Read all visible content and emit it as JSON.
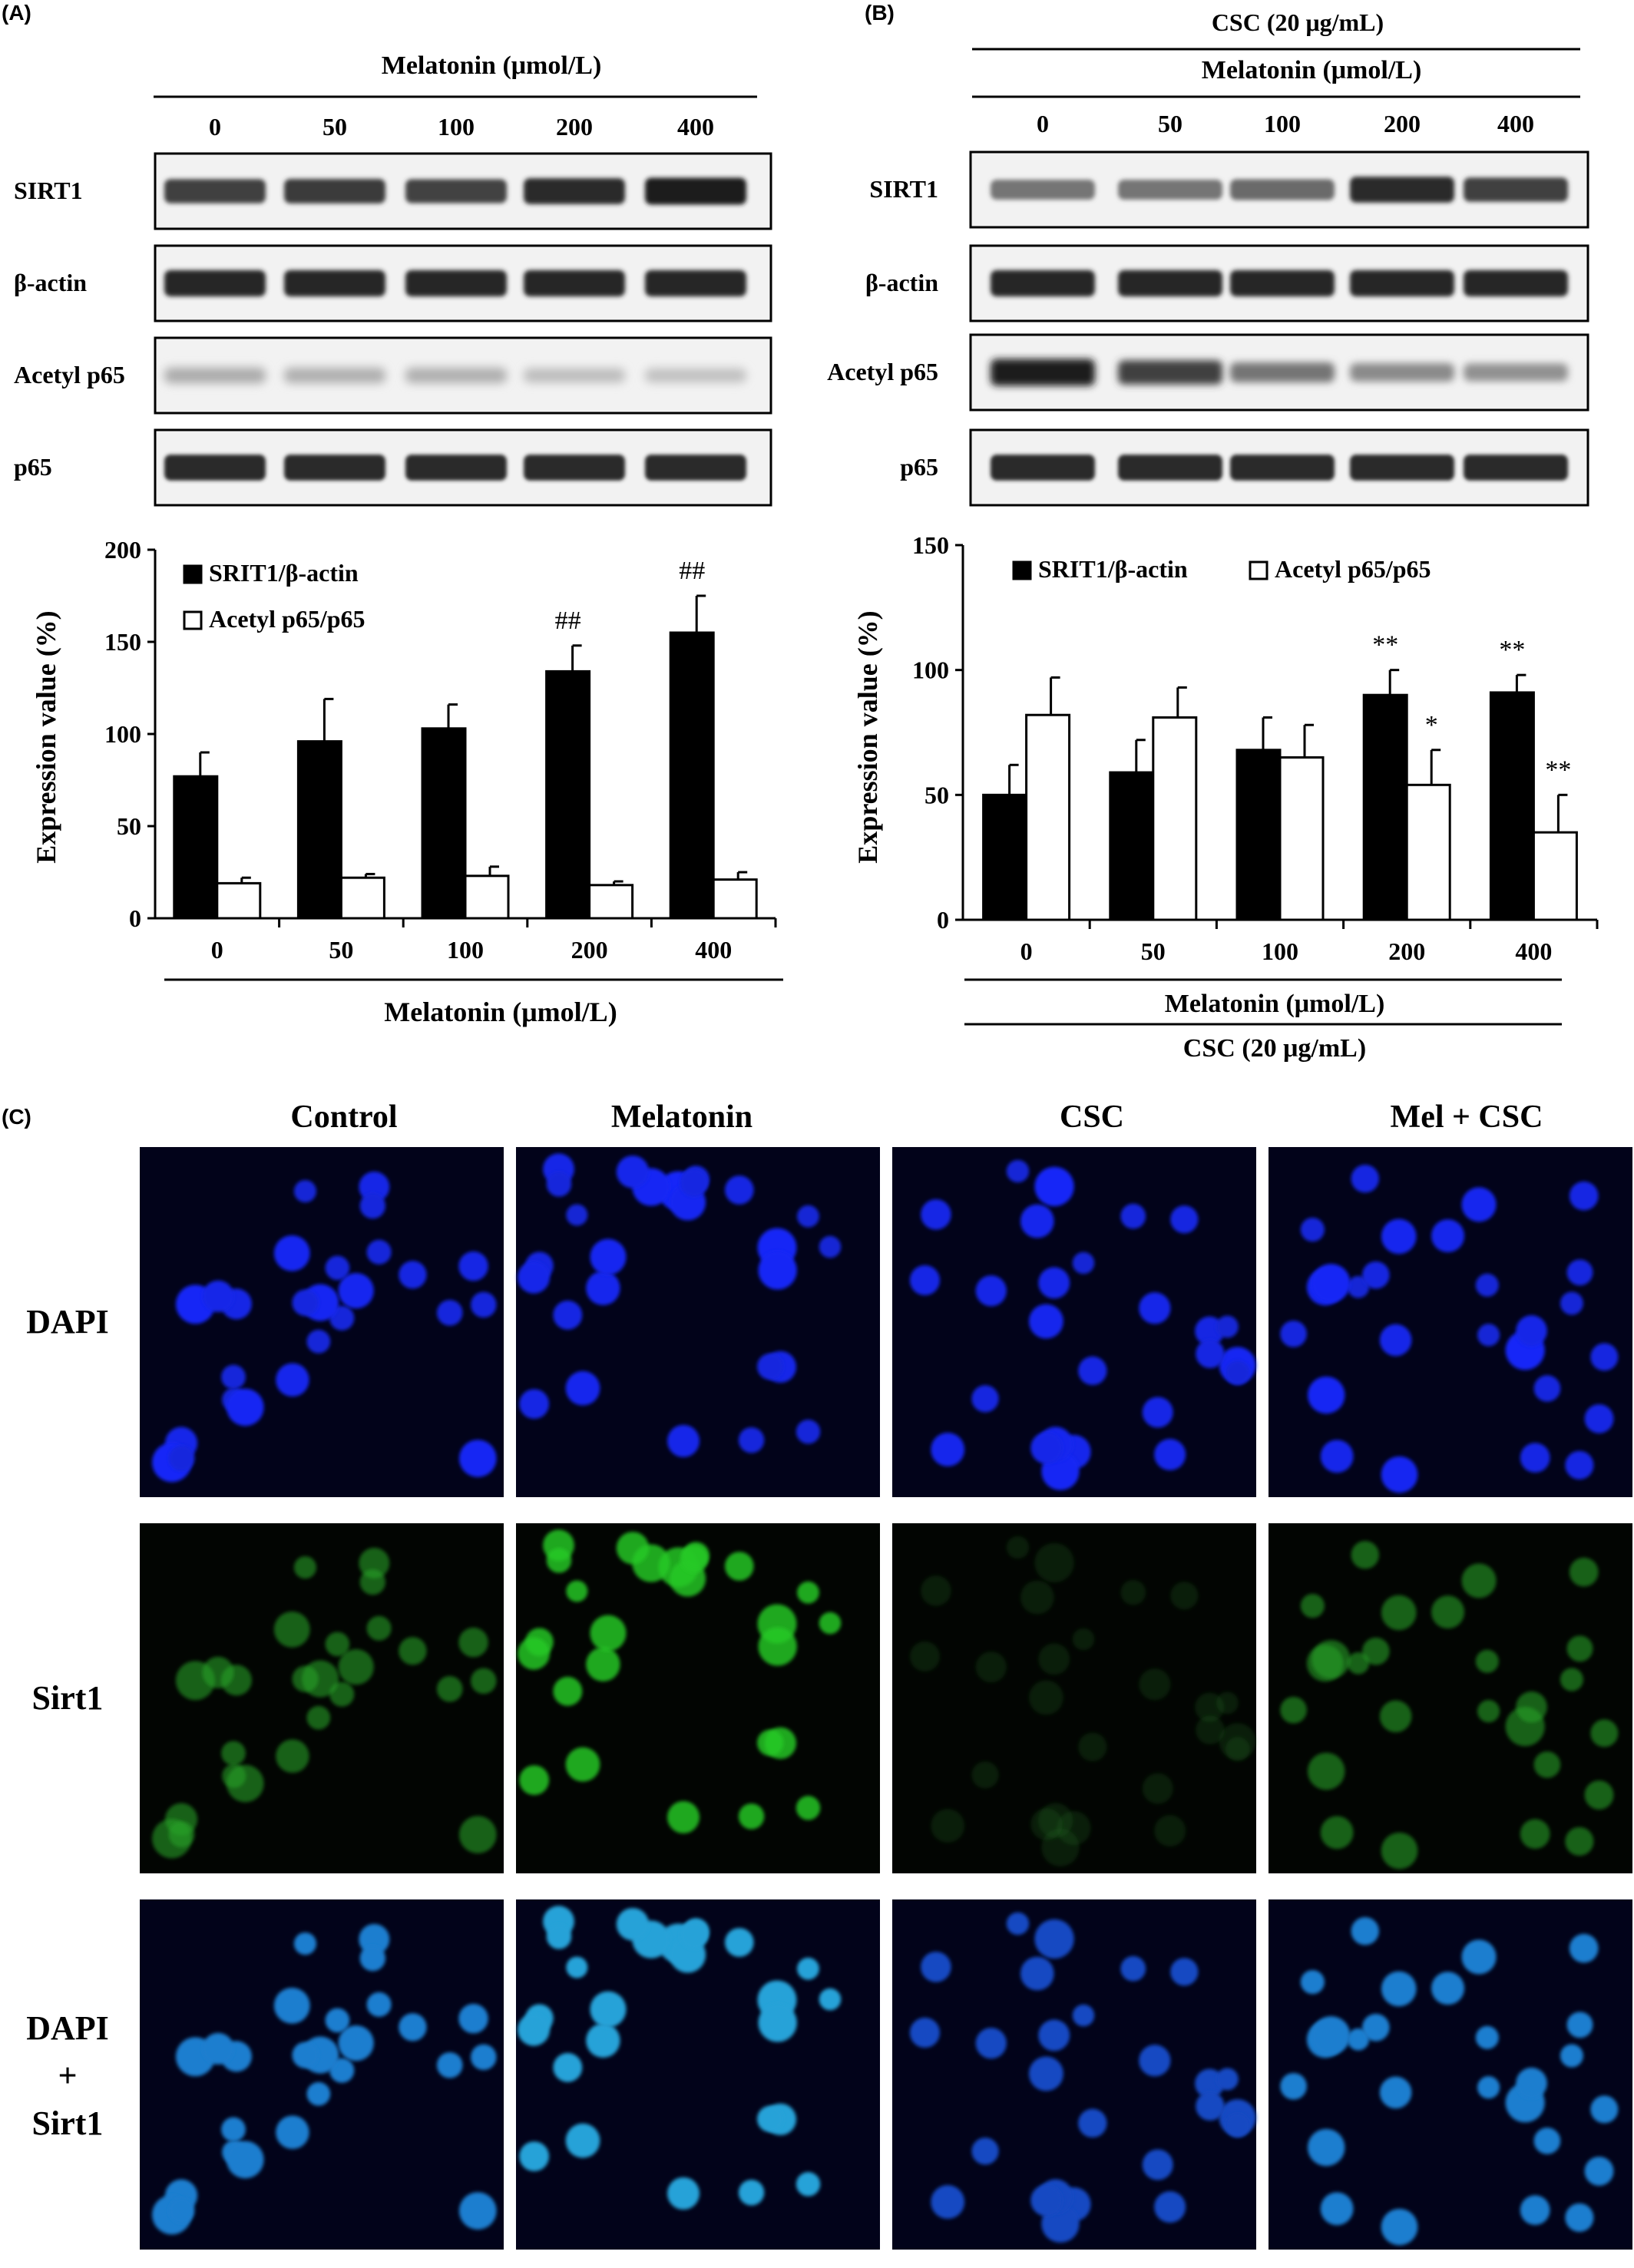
{
  "panels": {
    "A": {
      "letter": "(A)",
      "blot": {
        "treatment_label": "Melatonin (μmol/L)",
        "doses": [
          "0",
          "50",
          "100",
          "200",
          "400"
        ],
        "rows": [
          {
            "label": "SIRT1",
            "band_intensity": [
              0.8,
              0.82,
              0.78,
              0.9,
              0.95
            ],
            "blur": 1.0
          },
          {
            "label": "β-actin",
            "band_intensity": [
              0.92,
              0.92,
              0.92,
              0.92,
              0.92
            ],
            "blur": 1.0
          },
          {
            "label": "Acetyl p65",
            "band_intensity": [
              0.3,
              0.28,
              0.28,
              0.22,
              0.2
            ],
            "blur": 2.0
          },
          {
            "label": "p65",
            "band_intensity": [
              0.9,
              0.9,
              0.9,
              0.9,
              0.9
            ],
            "blur": 0.8
          }
        ]
      }
    },
    "B": {
      "letter": "(B)",
      "blot": {
        "top_label": "CSC (20 μg/mL)",
        "treatment_label": "Melatonin (μmol/L)",
        "doses": [
          "0",
          "50",
          "100",
          "200",
          "400"
        ],
        "rows": [
          {
            "label": "SIRT1",
            "band_intensity": [
              0.55,
              0.55,
              0.6,
              0.9,
              0.8
            ],
            "blur": 1.0
          },
          {
            "label": "β-actin",
            "band_intensity": [
              0.92,
              0.92,
              0.92,
              0.92,
              0.92
            ],
            "blur": 1.0
          },
          {
            "label": "Acetyl p65",
            "band_intensity": [
              0.95,
              0.8,
              0.55,
              0.45,
              0.42
            ],
            "blur": 1.6
          },
          {
            "label": "p65",
            "band_intensity": [
              0.9,
              0.9,
              0.9,
              0.9,
              0.9
            ],
            "blur": 0.8
          }
        ]
      }
    },
    "C": {
      "letter": "(C)",
      "columns": [
        "Control",
        "Melatonin",
        "CSC",
        "Mel + CSC"
      ],
      "rows": [
        {
          "label_lines": [
            "DAPI"
          ],
          "stain": "dapi"
        },
        {
          "label_lines": [
            "Sirt1"
          ],
          "stain": "sirt1"
        },
        {
          "label_lines": [
            "DAPI",
            "+",
            "Sirt1"
          ],
          "stain": "merge"
        }
      ],
      "sirt1_level": [
        0.55,
        0.85,
        0.12,
        0.55
      ]
    }
  },
  "chart_data": [
    {
      "type": "bar",
      "panel": "A",
      "categories": [
        "0",
        "50",
        "100",
        "200",
        "400"
      ],
      "series": [
        {
          "name": "SRIT1/β-actin",
          "values": [
            77,
            96,
            103,
            134,
            155
          ],
          "errors": [
            13,
            23,
            13,
            14,
            20
          ],
          "color": "#000000"
        },
        {
          "name": "Acetyl p65/p65",
          "values": [
            19,
            22,
            23,
            18,
            21
          ],
          "errors": [
            3,
            2,
            5,
            2,
            4
          ],
          "color": "#ffffff"
        }
      ],
      "annotations": [
        {
          "category": "200",
          "series": 0,
          "text": "##"
        },
        {
          "category": "400",
          "series": 0,
          "text": "##"
        }
      ],
      "ylabel": "Expression value (%)",
      "xlabel": "Melatonin (μmol/L)",
      "ylim": [
        0,
        200
      ],
      "yticks": [
        "0",
        "50",
        "100",
        "150",
        "200"
      ],
      "legend": "top-left",
      "grid": false
    },
    {
      "type": "bar",
      "panel": "B",
      "categories": [
        "0",
        "50",
        "100",
        "200",
        "400"
      ],
      "series": [
        {
          "name": "SRIT1/β-actin",
          "values": [
            50,
            59,
            68,
            90,
            91
          ],
          "errors": [
            12,
            13,
            13,
            10,
            7
          ],
          "color": "#000000"
        },
        {
          "name": "Acetyl p65/p65",
          "values": [
            82,
            81,
            65,
            54,
            35
          ],
          "errors": [
            15,
            12,
            13,
            14,
            15
          ],
          "color": "#ffffff"
        }
      ],
      "annotations": [
        {
          "category": "200",
          "series": 0,
          "text": "**"
        },
        {
          "category": "200",
          "series": 1,
          "text": "*"
        },
        {
          "category": "400",
          "series": 0,
          "text": "**"
        },
        {
          "category": "400",
          "series": 1,
          "text": "**"
        }
      ],
      "ylabel": "Expression value (%)",
      "xlabel": "Melatonin (μmol/L)",
      "xlabel2": "CSC (20 μg/mL)",
      "ylim": [
        0,
        150
      ],
      "yticks": [
        "0",
        "50",
        "100",
        "150"
      ],
      "legend": "top",
      "grid": false
    }
  ]
}
